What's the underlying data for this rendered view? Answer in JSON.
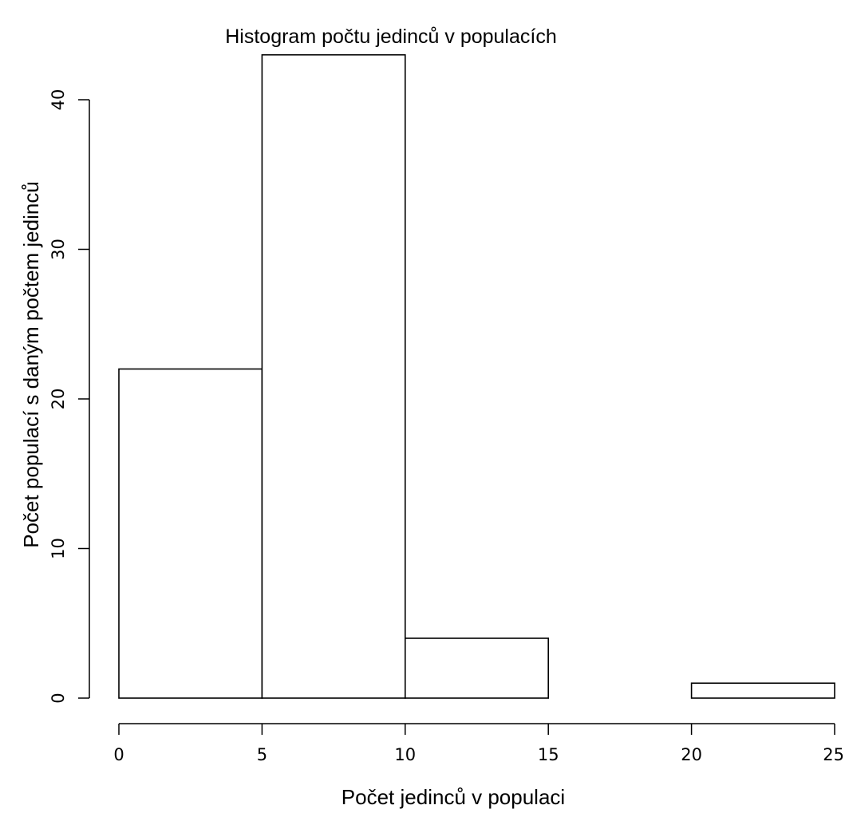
{
  "chart_data": {
    "type": "bar",
    "title": "Histogram počtu jedinců v populacích",
    "xlabel": "Počet jedinců v populaci",
    "ylabel": "Počet populací s daným počtem jedinců",
    "bins": [
      {
        "from": 0,
        "to": 5,
        "count": 22
      },
      {
        "from": 5,
        "to": 10,
        "count": 43
      },
      {
        "from": 10,
        "to": 15,
        "count": 4
      },
      {
        "from": 15,
        "to": 20,
        "count": 0
      },
      {
        "from": 20,
        "to": 25,
        "count": 1
      }
    ],
    "xlim": [
      0,
      25
    ],
    "ylim": [
      0,
      43
    ],
    "x_ticks": [
      "0",
      "5",
      "10",
      "15",
      "20",
      "25"
    ],
    "y_ticks": [
      "0",
      "10",
      "20",
      "30",
      "40"
    ],
    "grid": false,
    "legend": "none",
    "colors": {
      "bar_fill": "#ffffff",
      "bar_stroke": "#000000"
    }
  }
}
